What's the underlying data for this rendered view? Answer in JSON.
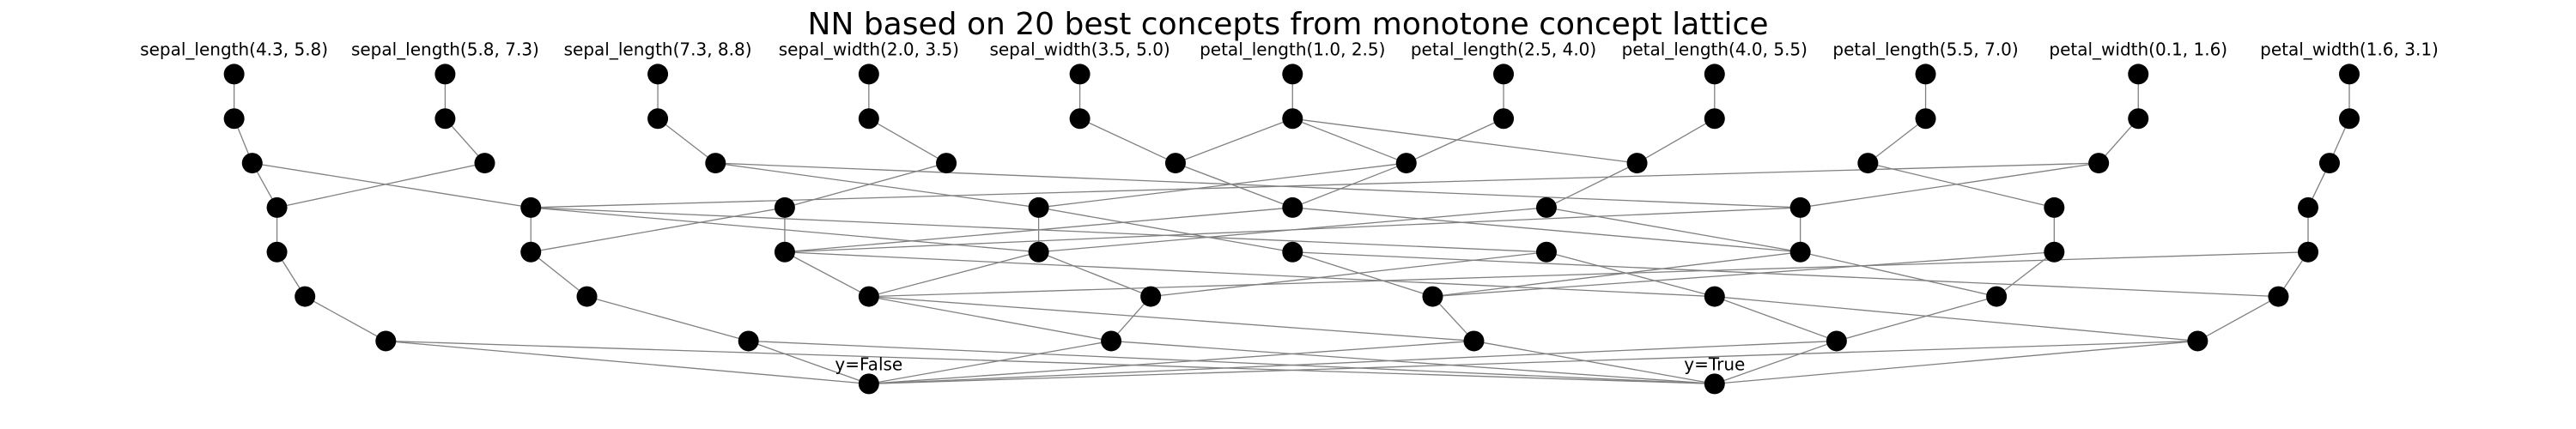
{
  "title": "NN based on 20 best concepts from monotone concept lattice",
  "input_labels": [
    "sepal_length(4.3, 5.8)",
    "sepal_length(5.8, 7.3)",
    "sepal_length(7.3, 8.8)",
    "sepal_width(2.0, 3.5)",
    "sepal_width(3.5, 5.0)",
    "petal_length(1.0, 2.5)",
    "petal_length(2.5, 4.0)",
    "petal_length(4.0, 5.5)",
    "petal_length(5.5, 7.0)",
    "petal_width(0.1, 1.6)",
    "petal_width(1.6, 3.1)"
  ],
  "output_labels": [
    "y=False",
    "y=True"
  ],
  "colors": {
    "node": "#000000",
    "edge": "#808080",
    "text": "#000000",
    "background": "#ffffff"
  }
}
